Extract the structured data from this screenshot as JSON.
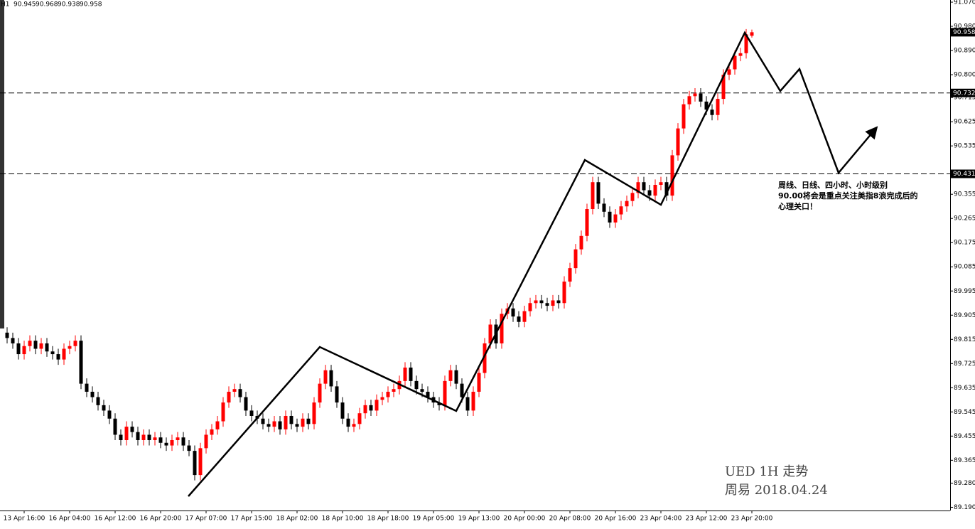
{
  "chart_data": {
    "type": "candlestick",
    "timeframe": "H1",
    "up_color": "#ff0000",
    "down_color": "#000000",
    "categories": [
      null,
      null,
      null,
      "13 Apr 16:00",
      null,
      null,
      null,
      null,
      null,
      null,
      null,
      "16 Apr 04:00",
      null,
      null,
      null,
      null,
      null,
      null,
      null,
      "16 Apr 12:00",
      null,
      null,
      null,
      null,
      null,
      null,
      null,
      "16 Apr 20:00",
      null,
      null,
      null,
      null,
      null,
      null,
      null,
      "17 Apr 07:00",
      null,
      null,
      null,
      null,
      null,
      null,
      null,
      "17 Apr 15:00",
      null,
      null,
      null,
      null,
      null,
      null,
      null,
      "18 Apr 02:00",
      null,
      null,
      null,
      null,
      null,
      null,
      null,
      "18 Apr 10:00",
      null,
      null,
      null,
      null,
      null,
      null,
      null,
      "18 Apr 18:00",
      null,
      null,
      null,
      null,
      null,
      null,
      null,
      "19 Apr 05:00",
      null,
      null,
      null,
      null,
      null,
      null,
      null,
      "19 Apr 13:00",
      null,
      null,
      null,
      null,
      null,
      null,
      null,
      "20 Apr 00:00",
      null,
      null,
      null,
      null,
      null,
      null,
      null,
      "20 Apr 08:00",
      null,
      null,
      null,
      null,
      null,
      null,
      null,
      "20 Apr 16:00",
      null,
      null,
      null,
      null,
      null,
      null,
      null,
      "23 Apr 04:00",
      null,
      null,
      null,
      null,
      null,
      null,
      null,
      "23 Apr 12:00",
      null,
      null,
      null,
      null,
      null,
      null,
      null,
      "23 Apr 20:00"
    ],
    "open": [
      89.84,
      89.82,
      89.8,
      89.76,
      89.79,
      89.81,
      89.78,
      89.8,
      89.77,
      89.76,
      89.74,
      89.78,
      89.79,
      89.81,
      89.65,
      89.62,
      89.6,
      89.57,
      89.55,
      89.52,
      89.46,
      89.44,
      89.49,
      89.47,
      89.44,
      89.46,
      89.44,
      89.45,
      89.43,
      89.42,
      89.44,
      89.45,
      89.42,
      89.4,
      89.31,
      89.41,
      89.46,
      89.48,
      89.51,
      89.58,
      89.62,
      89.63,
      89.6,
      89.55,
      89.53,
      89.52,
      89.5,
      89.49,
      89.51,
      89.48,
      89.53,
      89.5,
      89.49,
      89.52,
      89.5,
      89.58,
      89.65,
      89.7,
      89.64,
      89.58,
      89.52,
      89.49,
      89.5,
      89.54,
      89.57,
      89.55,
      89.59,
      89.6,
      89.62,
      89.63,
      89.66,
      89.71,
      89.66,
      89.63,
      89.62,
      89.6,
      89.58,
      89.57,
      89.66,
      89.7,
      89.65,
      89.6,
      89.55,
      89.62,
      89.69,
      89.8,
      89.87,
      89.8,
      89.91,
      89.93,
      89.9,
      89.88,
      89.92,
      89.95,
      89.96,
      89.95,
      89.94,
      89.96,
      89.95,
      90.03,
      90.08,
      90.15,
      90.2,
      90.3,
      90.4,
      90.32,
      90.29,
      90.25,
      90.28,
      90.31,
      90.33,
      90.36,
      90.4,
      90.37,
      90.35,
      90.39,
      90.4,
      90.35,
      90.5,
      90.6,
      90.69,
      90.72,
      90.73,
      90.7,
      90.67,
      90.65,
      90.71,
      90.8,
      90.82,
      90.87,
      90.88,
      90.945
    ],
    "high": [
      89.86,
      89.84,
      89.82,
      89.81,
      89.83,
      89.83,
      89.82,
      89.82,
      89.79,
      89.78,
      89.8,
      89.81,
      89.83,
      89.83,
      89.67,
      89.64,
      89.62,
      89.59,
      89.57,
      89.54,
      89.48,
      89.51,
      89.51,
      89.49,
      89.48,
      89.48,
      89.47,
      89.47,
      89.45,
      89.46,
      89.47,
      89.47,
      89.44,
      89.42,
      89.43,
      89.48,
      89.5,
      89.53,
      89.6,
      89.64,
      89.65,
      89.65,
      89.62,
      89.57,
      89.55,
      89.54,
      89.52,
      89.53,
      89.53,
      89.55,
      89.55,
      89.52,
      89.54,
      89.54,
      89.6,
      89.67,
      89.72,
      89.72,
      89.66,
      89.6,
      89.54,
      89.52,
      89.56,
      89.59,
      89.59,
      89.61,
      89.62,
      89.64,
      89.65,
      89.68,
      89.73,
      89.73,
      89.68,
      89.65,
      89.64,
      89.62,
      89.6,
      89.68,
      89.72,
      89.72,
      89.67,
      89.62,
      89.64,
      89.71,
      89.82,
      89.89,
      89.89,
      89.93,
      89.95,
      89.95,
      89.92,
      89.94,
      89.97,
      89.98,
      89.98,
      89.97,
      89.98,
      89.98,
      90.05,
      90.1,
      90.17,
      90.22,
      90.32,
      90.42,
      90.42,
      90.34,
      90.31,
      90.3,
      90.33,
      90.35,
      90.38,
      90.42,
      90.42,
      90.39,
      90.41,
      90.42,
      90.42,
      90.52,
      90.62,
      90.71,
      90.74,
      90.75,
      90.75,
      90.72,
      90.69,
      90.73,
      90.82,
      90.84,
      90.89,
      90.9,
      90.97,
      90.968
    ],
    "low": [
      89.8,
      89.78,
      89.74,
      89.74,
      89.77,
      89.76,
      89.76,
      89.75,
      89.74,
      89.72,
      89.72,
      89.76,
      89.77,
      89.63,
      89.6,
      89.58,
      89.55,
      89.53,
      89.5,
      89.44,
      89.42,
      89.42,
      89.45,
      89.42,
      89.42,
      89.42,
      89.42,
      89.41,
      89.4,
      89.4,
      89.42,
      89.4,
      89.38,
      89.29,
      89.29,
      89.39,
      89.44,
      89.46,
      89.49,
      89.56,
      89.6,
      89.58,
      89.53,
      89.51,
      89.5,
      89.48,
      89.47,
      89.47,
      89.46,
      89.46,
      89.48,
      89.47,
      89.47,
      89.48,
      89.48,
      89.56,
      89.63,
      89.62,
      89.56,
      89.5,
      89.47,
      89.47,
      89.48,
      89.52,
      89.53,
      89.53,
      89.57,
      89.58,
      89.6,
      89.61,
      89.64,
      89.64,
      89.61,
      89.6,
      89.58,
      89.56,
      89.55,
      89.55,
      89.64,
      89.63,
      89.58,
      89.53,
      89.53,
      89.6,
      89.67,
      89.78,
      89.78,
      89.78,
      89.89,
      89.88,
      89.86,
      89.86,
      89.9,
      89.93,
      89.93,
      89.92,
      89.92,
      89.93,
      89.93,
      90.01,
      90.06,
      90.13,
      90.18,
      90.28,
      90.3,
      90.27,
      90.23,
      90.23,
      90.26,
      90.29,
      90.31,
      90.34,
      90.35,
      90.33,
      90.33,
      90.37,
      90.33,
      90.33,
      90.48,
      90.58,
      90.67,
      90.7,
      90.68,
      90.65,
      90.63,
      90.63,
      90.69,
      90.78,
      90.8,
      90.85,
      90.86,
      90.938
    ],
    "close": [
      89.82,
      89.8,
      89.76,
      89.79,
      89.81,
      89.78,
      89.8,
      89.77,
      89.76,
      89.74,
      89.78,
      89.79,
      89.81,
      89.65,
      89.62,
      89.6,
      89.57,
      89.55,
      89.52,
      89.46,
      89.44,
      89.49,
      89.47,
      89.44,
      89.46,
      89.44,
      89.45,
      89.43,
      89.42,
      89.44,
      89.45,
      89.42,
      89.4,
      89.31,
      89.41,
      89.46,
      89.48,
      89.51,
      89.58,
      89.62,
      89.63,
      89.6,
      89.55,
      89.53,
      89.52,
      89.5,
      89.49,
      89.51,
      89.48,
      89.53,
      89.5,
      89.49,
      89.52,
      89.5,
      89.58,
      89.65,
      89.7,
      89.64,
      89.58,
      89.52,
      89.49,
      89.5,
      89.54,
      89.57,
      89.55,
      89.59,
      89.6,
      89.62,
      89.63,
      89.66,
      89.71,
      89.66,
      89.63,
      89.62,
      89.6,
      89.58,
      89.57,
      89.66,
      89.7,
      89.65,
      89.6,
      89.55,
      89.62,
      89.69,
      89.8,
      89.87,
      89.8,
      89.91,
      89.93,
      89.9,
      89.88,
      89.92,
      89.95,
      89.96,
      89.95,
      89.94,
      89.96,
      89.95,
      90.03,
      90.08,
      90.15,
      90.2,
      90.3,
      90.4,
      90.32,
      90.29,
      90.25,
      90.28,
      90.31,
      90.33,
      90.36,
      90.4,
      90.37,
      90.35,
      90.39,
      90.4,
      90.35,
      90.5,
      90.6,
      90.69,
      90.72,
      90.73,
      90.7,
      90.67,
      90.65,
      90.71,
      90.8,
      90.82,
      90.87,
      90.88,
      90.95,
      90.958
    ],
    "ylim": [
      89.178,
      91.078
    ],
    "yticks": [
      {
        "value": 91.07,
        "label": "91.070"
      },
      {
        "value": 90.98,
        "label": "90.980"
      },
      {
        "value": 90.89,
        "label": "90.890"
      },
      {
        "value": 90.8,
        "label": "90.800"
      },
      90.715,
      90.625,
      90.535,
      90.355,
      90.265,
      90.175,
      90.085,
      89.995,
      89.905,
      89.815,
      89.725,
      89.635,
      89.545,
      89.455,
      89.365,
      {
        "value": 89.28,
        "label": "89.280"
      },
      {
        "value": 89.19,
        "label": "89.190"
      }
    ],
    "price_lines": [
      90.732,
      90.431
    ],
    "annotation": [
      "周线、日线、四小时、小时级别",
      "90.00将会是重点关注美指8浪完成后的",
      "心理关口！"
    ],
    "watermark": [
      "UED 1H 走势",
      "周易 2018.04.24"
    ]
  }
}
